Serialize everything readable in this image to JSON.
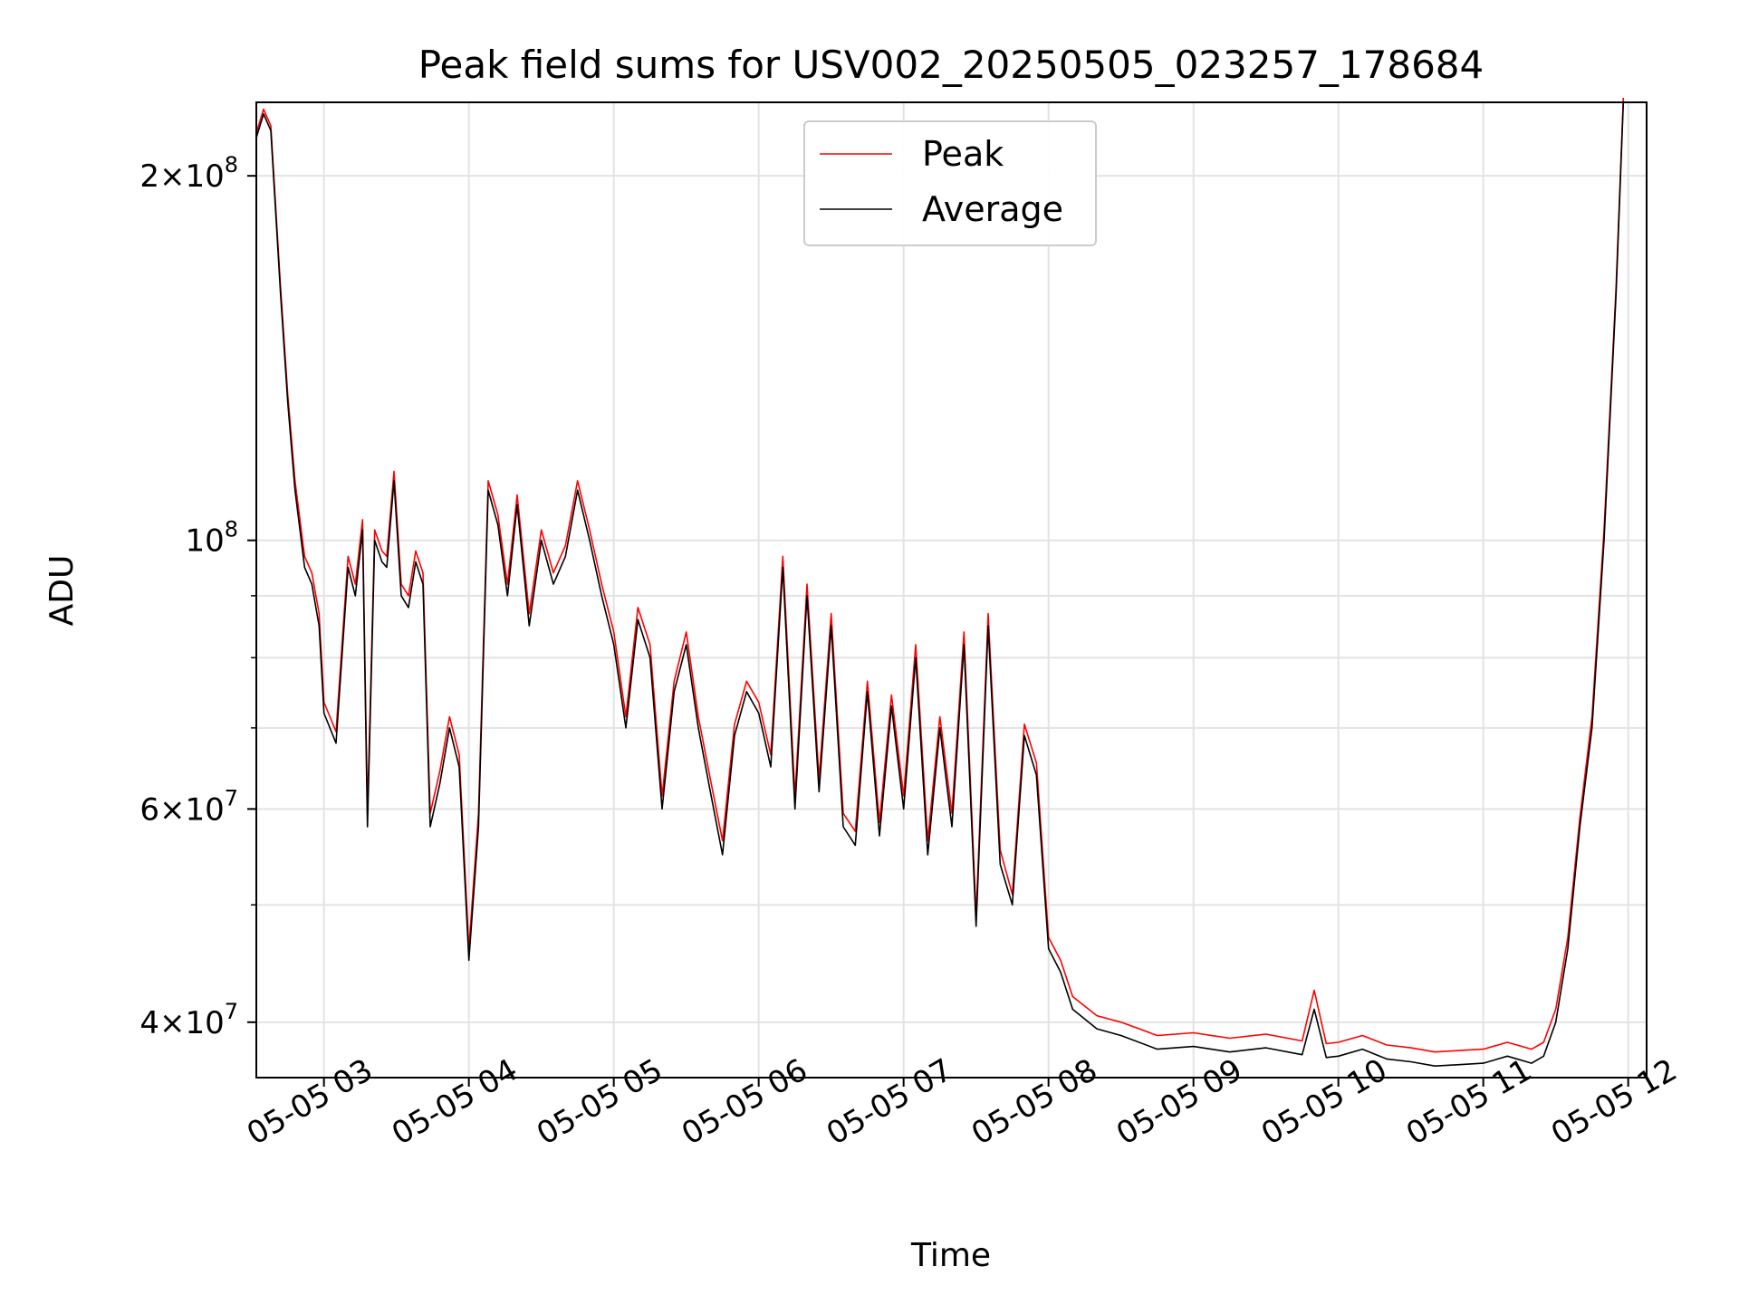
{
  "chart_data": {
    "type": "line",
    "title": "Peak field sums for USV002_20250505_023257_178684",
    "xlabel": "Time",
    "ylabel": "ADU",
    "yscale": "log",
    "ylim": [
      36000000,
      230000000
    ],
    "xlim": [
      "2025-05-05 02:32",
      "2025-05-05 12:00"
    ],
    "grid": true,
    "legend_position": "upper center",
    "x_ticks": [
      {
        "value": "2025-05-05 03:00",
        "label": "05-05 03"
      },
      {
        "value": "2025-05-05 04:00",
        "label": "05-05 04"
      },
      {
        "value": "2025-05-05 05:00",
        "label": "05-05 05"
      },
      {
        "value": "2025-05-05 06:00",
        "label": "05-05 06"
      },
      {
        "value": "2025-05-05 07:00",
        "label": "05-05 07"
      },
      {
        "value": "2025-05-05 08:00",
        "label": "05-05 08"
      },
      {
        "value": "2025-05-05 09:00",
        "label": "05-05 09"
      },
      {
        "value": "2025-05-05 10:00",
        "label": "05-05 10"
      },
      {
        "value": "2025-05-05 11:00",
        "label": "05-05 11"
      },
      {
        "value": "2025-05-05 12:00",
        "label": "05-05 12"
      }
    ],
    "y_major_ticks": [
      {
        "value": 40000000,
        "mantissa": "4",
        "exponent": "7"
      },
      {
        "value": 60000000,
        "mantissa": "6",
        "exponent": "7"
      },
      {
        "value": 100000000,
        "mantissa": "",
        "exponent": "8"
      },
      {
        "value": 200000000,
        "mantissa": "2",
        "exponent": "8"
      }
    ],
    "y_minor_gridlines": [
      50000000,
      70000000,
      80000000,
      90000000
    ],
    "series": [
      {
        "name": "Peak",
        "color": "#ff0000"
      },
      {
        "name": "Average",
        "color": "#000000"
      }
    ],
    "x": [
      "2025-05-05 02:32",
      "2025-05-05 02:35",
      "2025-05-05 02:38",
      "2025-05-05 02:42",
      "2025-05-05 02:45",
      "2025-05-05 02:48",
      "2025-05-05 02:52",
      "2025-05-05 02:55",
      "2025-05-05 02:58",
      "2025-05-05 03:00",
      "2025-05-05 03:05",
      "2025-05-05 03:10",
      "2025-05-05 03:13",
      "2025-05-05 03:16",
      "2025-05-05 03:18",
      "2025-05-05 03:21",
      "2025-05-05 03:24",
      "2025-05-05 03:26",
      "2025-05-05 03:29",
      "2025-05-05 03:32",
      "2025-05-05 03:35",
      "2025-05-05 03:38",
      "2025-05-05 03:41",
      "2025-05-05 03:44",
      "2025-05-05 03:48",
      "2025-05-05 03:52",
      "2025-05-05 03:56",
      "2025-05-05 04:00",
      "2025-05-05 04:04",
      "2025-05-05 04:08",
      "2025-05-05 04:12",
      "2025-05-05 04:16",
      "2025-05-05 04:20",
      "2025-05-05 04:25",
      "2025-05-05 04:30",
      "2025-05-05 04:35",
      "2025-05-05 04:40",
      "2025-05-05 04:45",
      "2025-05-05 04:50",
      "2025-05-05 04:55",
      "2025-05-05 05:00",
      "2025-05-05 05:05",
      "2025-05-05 05:10",
      "2025-05-05 05:15",
      "2025-05-05 05:20",
      "2025-05-05 05:25",
      "2025-05-05 05:30",
      "2025-05-05 05:35",
      "2025-05-05 05:40",
      "2025-05-05 05:45",
      "2025-05-05 05:50",
      "2025-05-05 05:55",
      "2025-05-05 06:00",
      "2025-05-05 06:05",
      "2025-05-05 06:10",
      "2025-05-05 06:15",
      "2025-05-05 06:20",
      "2025-05-05 06:25",
      "2025-05-05 06:30",
      "2025-05-05 06:35",
      "2025-05-05 06:40",
      "2025-05-05 06:45",
      "2025-05-05 06:50",
      "2025-05-05 06:55",
      "2025-05-05 07:00",
      "2025-05-05 07:05",
      "2025-05-05 07:10",
      "2025-05-05 07:15",
      "2025-05-05 07:20",
      "2025-05-05 07:25",
      "2025-05-05 07:30",
      "2025-05-05 07:35",
      "2025-05-05 07:40",
      "2025-05-05 07:45",
      "2025-05-05 07:50",
      "2025-05-05 07:55",
      "2025-05-05 08:00",
      "2025-05-05 08:05",
      "2025-05-05 08:10",
      "2025-05-05 08:20",
      "2025-05-05 08:30",
      "2025-05-05 08:45",
      "2025-05-05 09:00",
      "2025-05-05 09:15",
      "2025-05-05 09:30",
      "2025-05-05 09:45",
      "2025-05-05 09:50",
      "2025-05-05 09:55",
      "2025-05-05 10:00",
      "2025-05-05 10:10",
      "2025-05-05 10:20",
      "2025-05-05 10:30",
      "2025-05-05 10:40",
      "2025-05-05 10:50",
      "2025-05-05 11:00",
      "2025-05-05 11:10",
      "2025-05-05 11:20",
      "2025-05-05 11:25",
      "2025-05-05 11:30",
      "2025-05-05 11:35",
      "2025-05-05 11:40",
      "2025-05-05 11:45",
      "2025-05-05 11:50",
      "2025-05-05 11:55",
      "2025-05-05 11:58"
    ],
    "average": [
      215000000,
      225000000,
      218000000,
      160000000,
      130000000,
      110000000,
      95000000,
      92000000,
      85000000,
      72000000,
      68000000,
      95000000,
      90000000,
      102000000,
      58000000,
      100000000,
      96000000,
      95000000,
      112000000,
      90000000,
      88000000,
      96000000,
      92000000,
      58000000,
      63000000,
      70000000,
      65000000,
      45000000,
      58000000,
      110000000,
      103000000,
      90000000,
      107000000,
      85000000,
      100000000,
      92000000,
      97000000,
      110000000,
      100000000,
      90000000,
      82000000,
      70000000,
      86000000,
      80000000,
      60000000,
      75000000,
      82000000,
      70000000,
      62000000,
      55000000,
      69000000,
      75000000,
      72000000,
      65000000,
      95000000,
      60000000,
      90000000,
      62000000,
      85000000,
      58000000,
      56000000,
      75000000,
      57000000,
      73000000,
      60000000,
      80000000,
      55000000,
      70000000,
      58000000,
      82000000,
      48000000,
      85000000,
      54000000,
      50000000,
      69000000,
      64000000,
      46000000,
      44000000,
      41000000,
      39500000,
      39000000,
      38000000,
      38200000,
      37800000,
      38100000,
      37600000,
      41000000,
      37400000,
      37500000,
      38000000,
      37300000,
      37100000,
      36800000,
      36900000,
      37000000,
      37500000,
      37000000,
      37500000,
      40000000,
      46000000,
      58000000,
      70000000,
      100000000,
      160000000,
      230000000
    ],
    "peak": [
      217000000,
      227000000,
      220000000,
      162000000,
      132000000,
      112000000,
      97000000,
      94000000,
      87000000,
      73500000,
      69500000,
      97000000,
      92000000,
      104000000,
      59500000,
      102000000,
      98000000,
      97000000,
      114000000,
      92000000,
      90000000,
      98000000,
      94000000,
      59500000,
      64500000,
      71500000,
      66500000,
      46000000,
      59500000,
      112000000,
      105000000,
      92000000,
      109000000,
      87000000,
      102000000,
      94000000,
      99000000,
      112000000,
      102000000,
      92000000,
      84000000,
      71500000,
      88000000,
      82000000,
      61500000,
      76500000,
      84000000,
      71500000,
      63500000,
      56500000,
      70500000,
      76500000,
      73500000,
      66500000,
      97000000,
      61500000,
      92000000,
      63500000,
      87000000,
      59500000,
      57500000,
      76500000,
      58500000,
      74500000,
      61500000,
      82000000,
      56500000,
      71500000,
      59500000,
      84000000,
      49000000,
      87000000,
      55500000,
      51000000,
      70500000,
      65500000,
      47000000,
      45000000,
      42000000,
      40500000,
      40000000,
      39000000,
      39200000,
      38800000,
      39100000,
      38600000,
      42500000,
      38400000,
      38500000,
      39000000,
      38300000,
      38100000,
      37800000,
      37900000,
      38000000,
      38500000,
      38000000,
      38500000,
      41000000,
      47000000,
      59000000,
      71500000,
      102000000,
      162000000,
      232000000
    ]
  }
}
